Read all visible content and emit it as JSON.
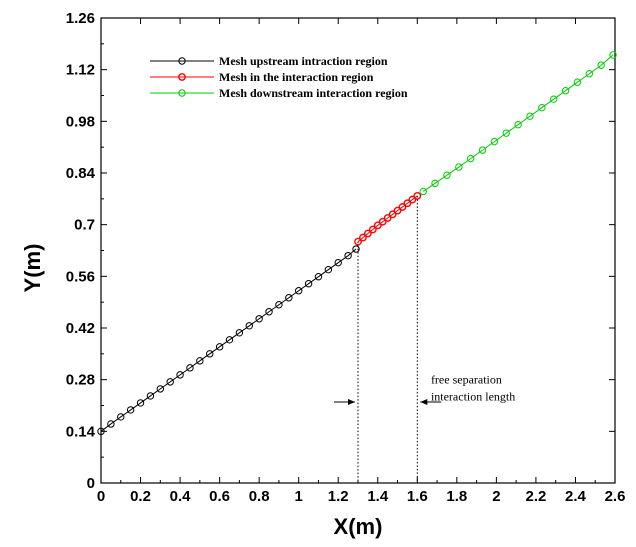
{
  "chart_data": {
    "type": "line",
    "xlabel": "X(m)",
    "ylabel": "Y(m)",
    "xlim": [
      0,
      2.6
    ],
    "ylim": [
      0,
      1.26
    ],
    "x_ticks": [
      "0",
      "0.2",
      "0.4",
      "0.6",
      "0.8",
      "1",
      "1.2",
      "1.4",
      "1.6",
      "1.8",
      "2",
      "2.2",
      "2.4",
      "2.6"
    ],
    "y_ticks": [
      "0",
      "0.14",
      "0.28",
      "0.42",
      "0.56",
      "0.7",
      "0.84",
      "0.98",
      "1.12",
      "1.26"
    ],
    "grid": false,
    "legend_position": "top-left",
    "series": [
      {
        "name": "Mesh upstream intraction region",
        "color": "#000000",
        "x": [
          0,
          0.05,
          0.1,
          0.15,
          0.2,
          0.25,
          0.3,
          0.35,
          0.4,
          0.45,
          0.5,
          0.55,
          0.6,
          0.65,
          0.7,
          0.75,
          0.8,
          0.85,
          0.9,
          0.95,
          1.0,
          1.05,
          1.1,
          1.15,
          1.2,
          1.25,
          1.29
        ],
        "y": [
          0.14,
          0.16,
          0.179,
          0.198,
          0.217,
          0.236,
          0.255,
          0.274,
          0.293,
          0.312,
          0.331,
          0.35,
          0.369,
          0.388,
          0.407,
          0.426,
          0.445,
          0.464,
          0.483,
          0.502,
          0.521,
          0.54,
          0.559,
          0.578,
          0.597,
          0.616,
          0.634
        ]
      },
      {
        "name": "Mesh in the interaction region",
        "color": "#ff0000",
        "x": [
          1.3,
          1.325,
          1.35,
          1.375,
          1.4,
          1.425,
          1.45,
          1.475,
          1.5,
          1.525,
          1.55,
          1.575,
          1.6
        ],
        "y": [
          0.654,
          0.665,
          0.676,
          0.687,
          0.698,
          0.708,
          0.718,
          0.728,
          0.738,
          0.748,
          0.758,
          0.768,
          0.778
        ]
      },
      {
        "name": "Mesh downstream interaction region",
        "color": "#00cc00",
        "x": [
          1.63,
          1.69,
          1.75,
          1.81,
          1.87,
          1.93,
          1.99,
          2.05,
          2.11,
          2.17,
          2.23,
          2.29,
          2.35,
          2.41,
          2.47,
          2.53,
          2.59
        ],
        "y": [
          0.79,
          0.812,
          0.834,
          0.856,
          0.879,
          0.902,
          0.925,
          0.948,
          0.971,
          0.994,
          1.017,
          1.04,
          1.063,
          1.086,
          1.109,
          1.132,
          1.16
        ]
      }
    ],
    "markers": "circle",
    "vertical_lines": [
      1.3,
      1.6
    ],
    "annotations": [
      {
        "text": "free separation",
        "x": 1.76,
        "y": 0.28
      },
      {
        "text": "interaction length",
        "x": 1.76,
        "y": 0.235
      }
    ]
  }
}
